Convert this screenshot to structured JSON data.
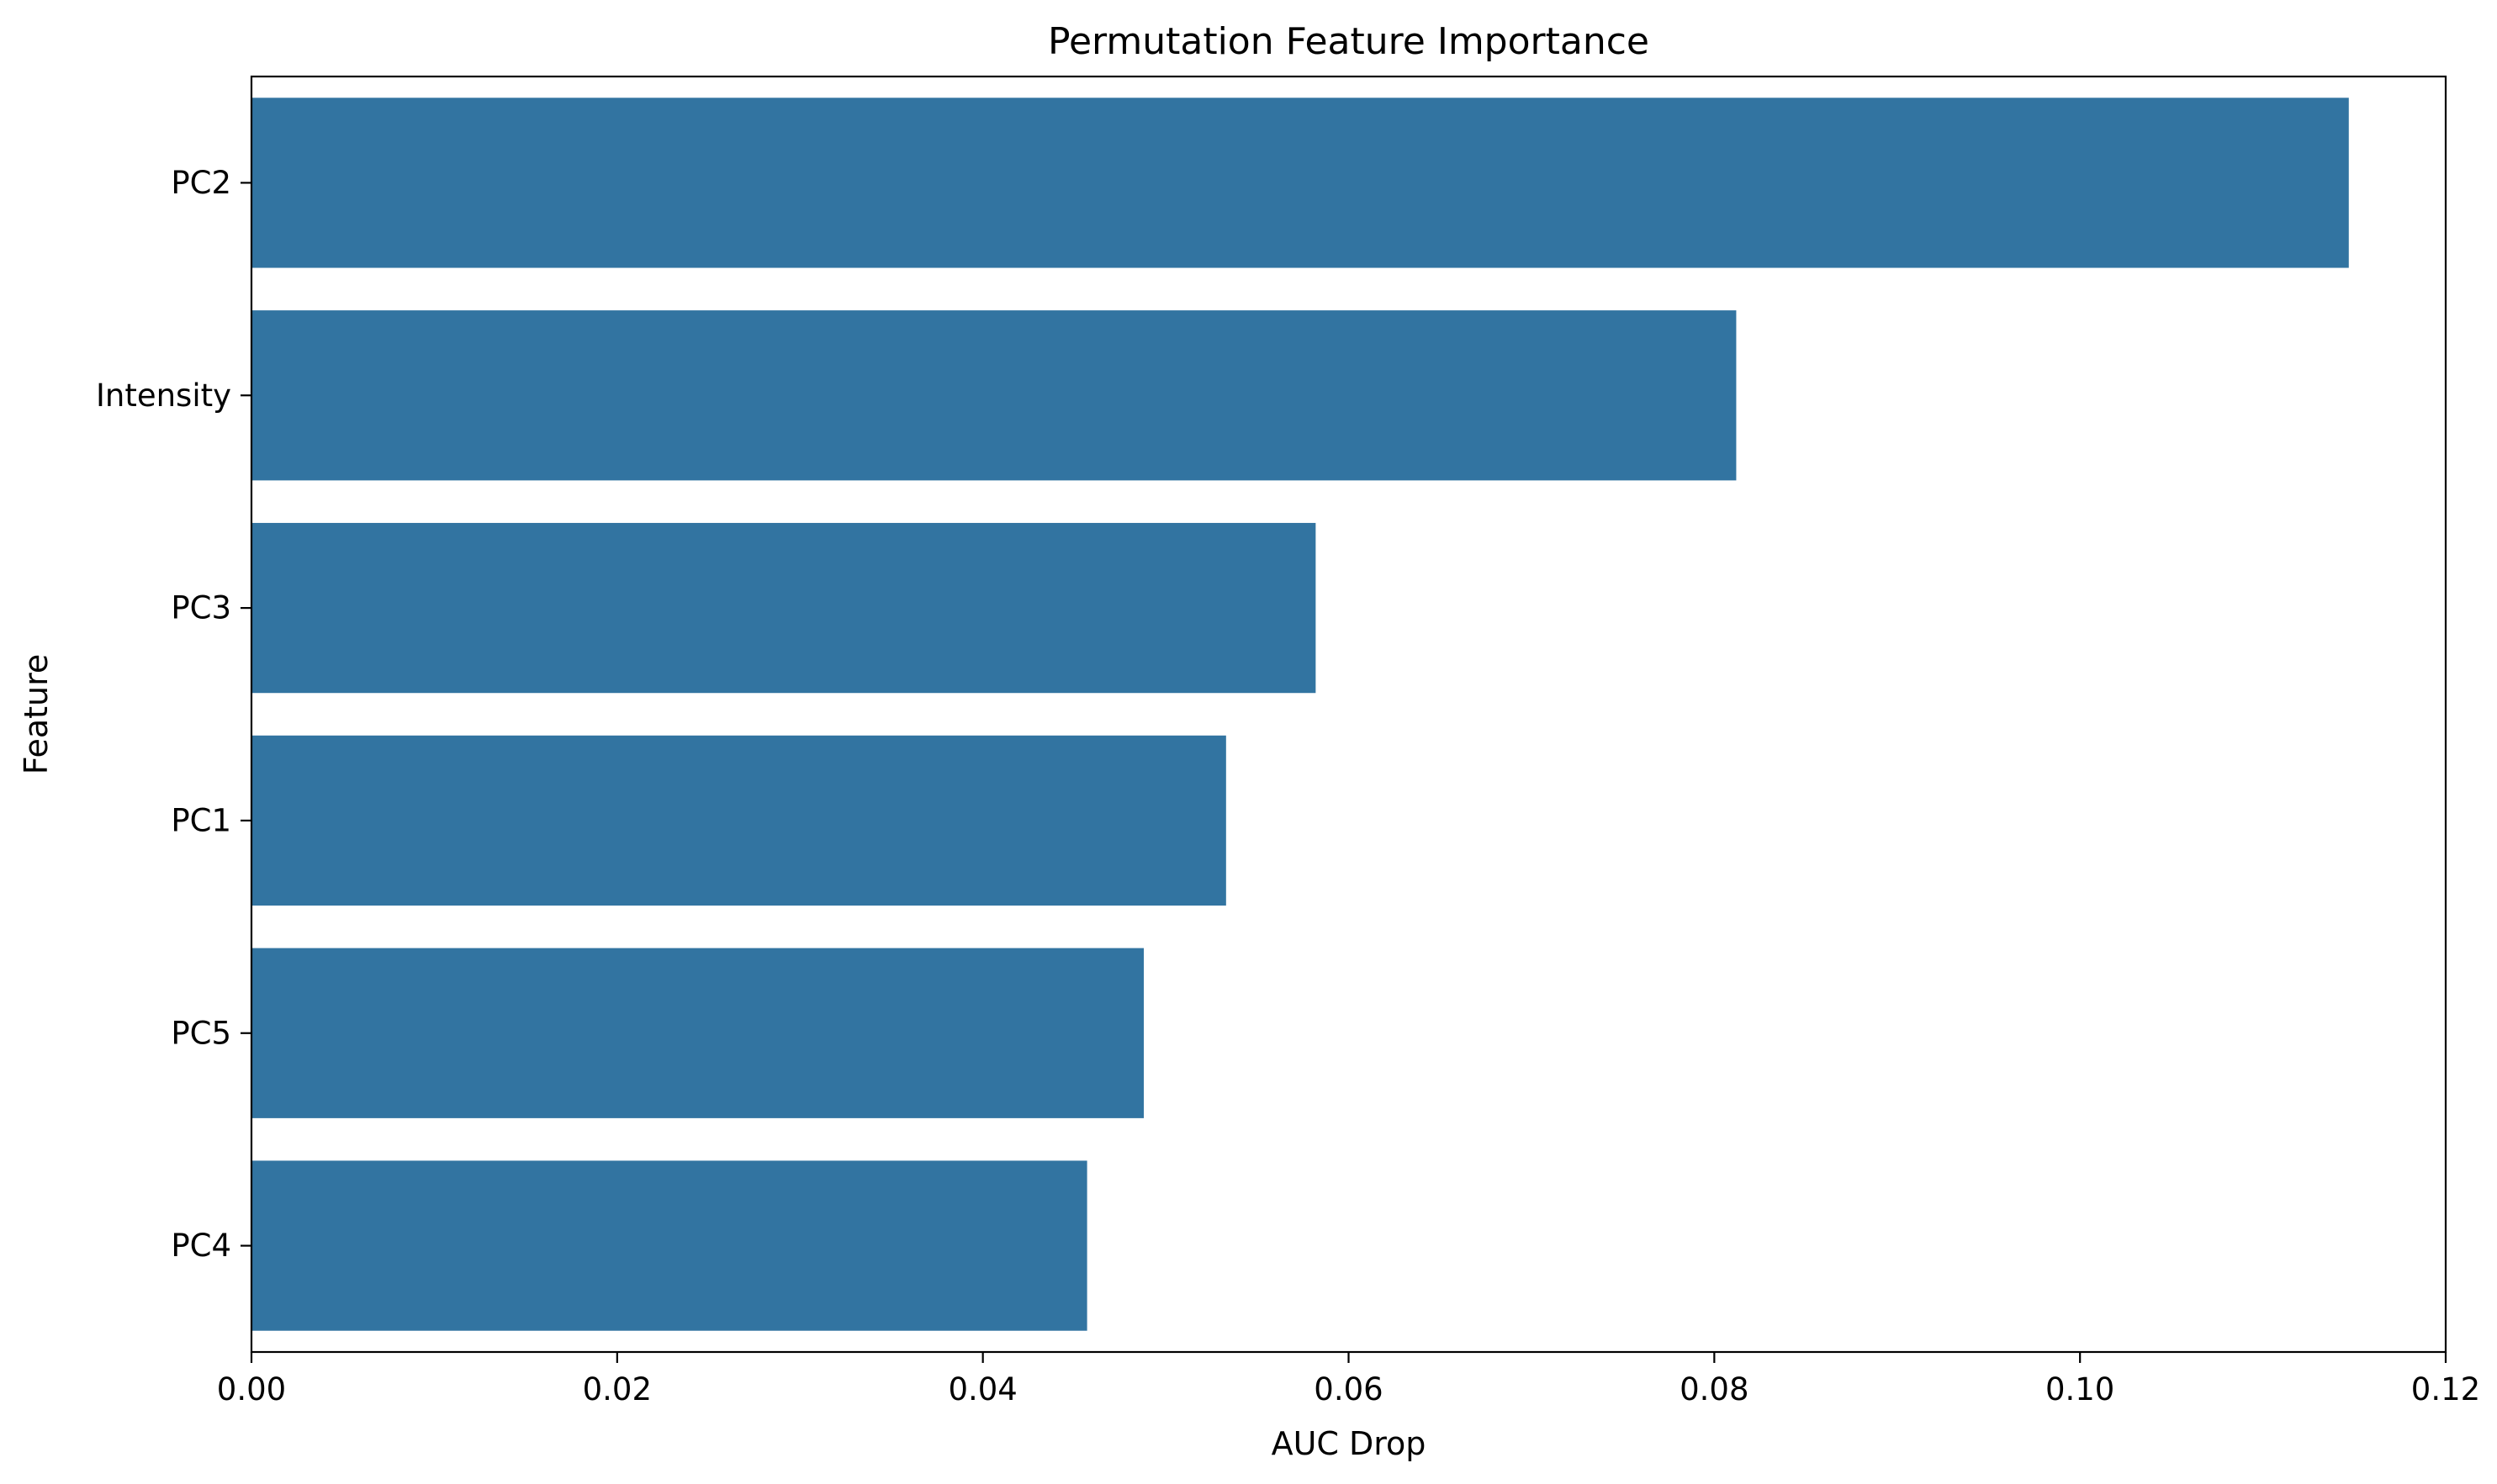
{
  "chart_data": {
    "type": "bar",
    "orientation": "horizontal",
    "title": "Permutation Feature Importance",
    "xlabel": "AUC Drop",
    "ylabel": "Feature",
    "categories": [
      "PC2",
      "Intensity",
      "PC3",
      "PC1",
      "PC5",
      "PC4"
    ],
    "values": [
      0.1147,
      0.0812,
      0.0582,
      0.0533,
      0.0488,
      0.0457
    ],
    "xlim": [
      0,
      0.12
    ],
    "xticks": [
      0.0,
      0.02,
      0.04,
      0.06,
      0.08,
      0.1,
      0.12
    ],
    "xtick_labels": [
      "0.00",
      "0.02",
      "0.04",
      "0.06",
      "0.08",
      "0.10",
      "0.12"
    ],
    "grid": false,
    "bar_color": "#3274a1"
  }
}
